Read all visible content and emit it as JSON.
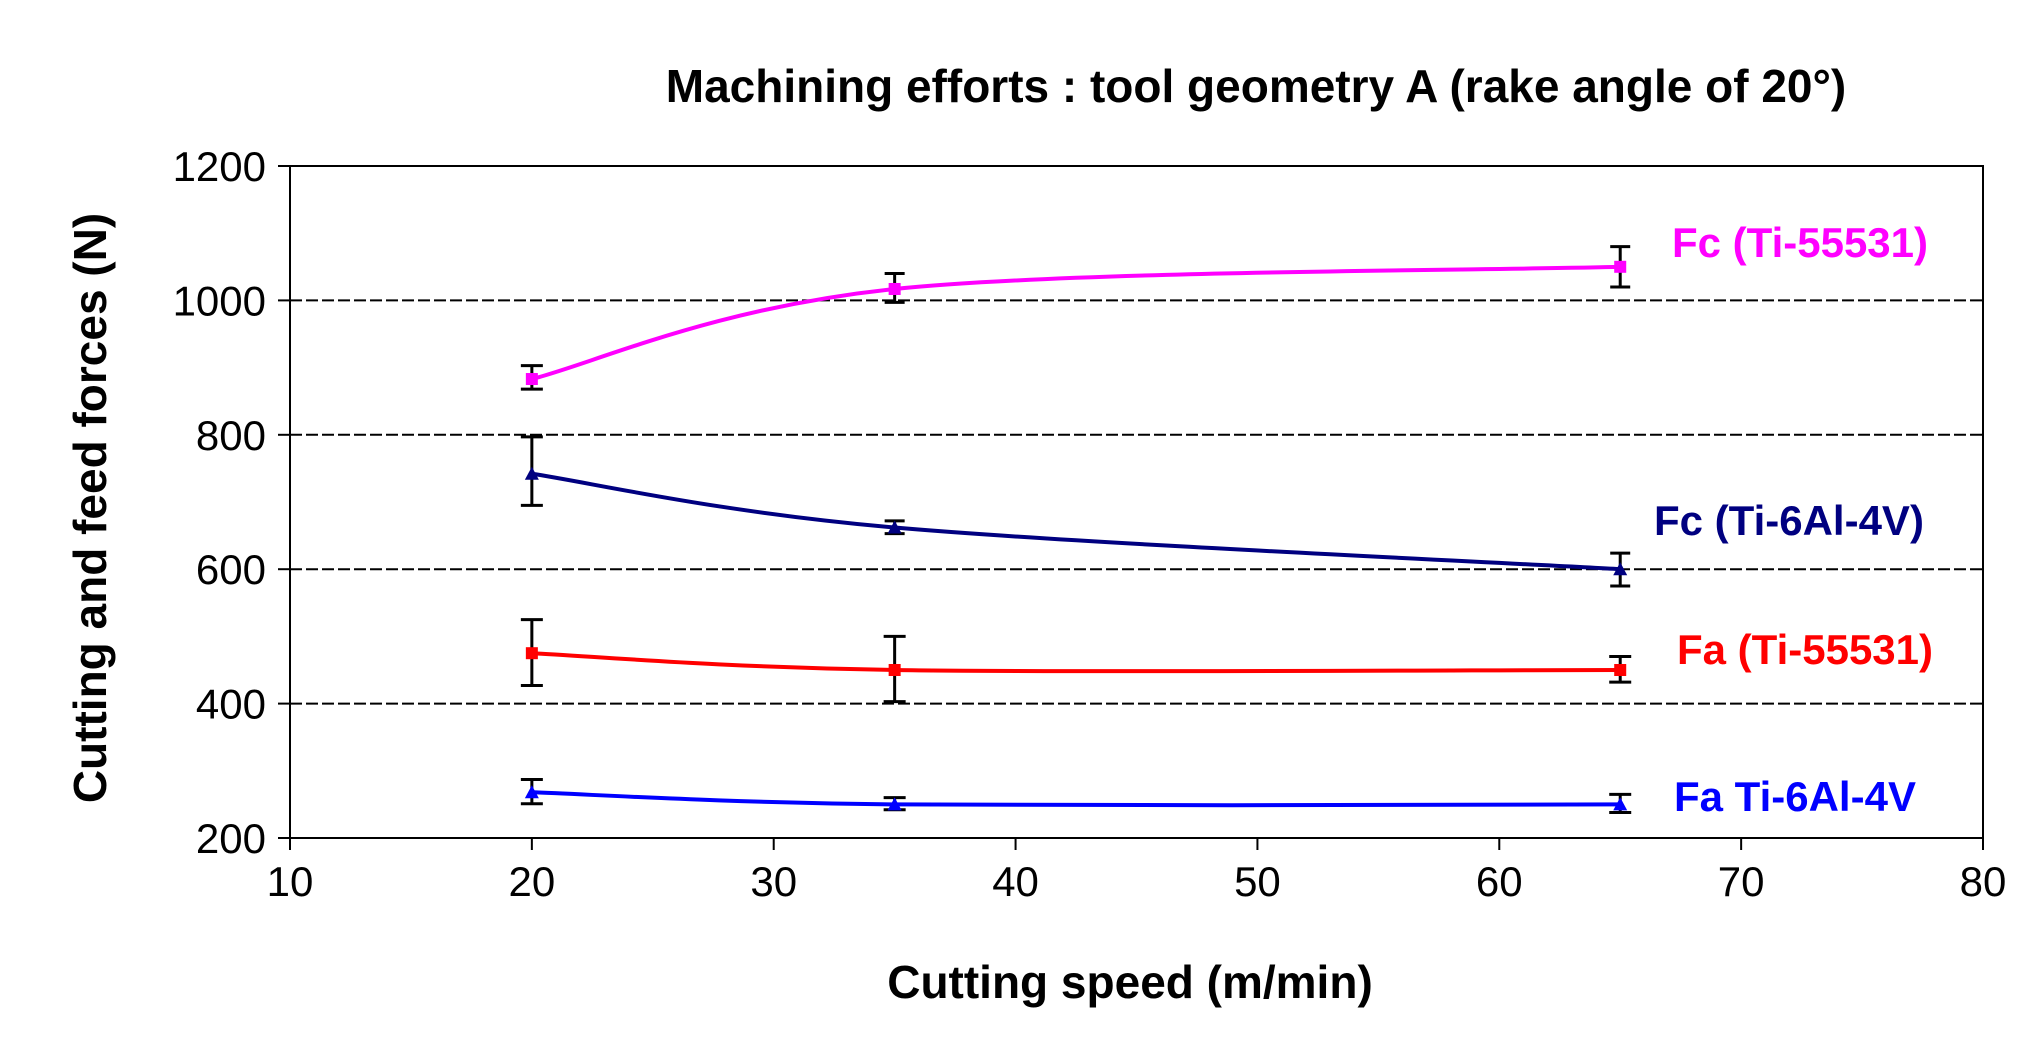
{
  "chart_data": {
    "type": "line",
    "title": "Machining efforts : tool geometry A (rake angle of 20°)",
    "xlabel": "Cutting speed (m/min)",
    "ylabel": "Cutting and feed forces (N)",
    "xlim": [
      10,
      80
    ],
    "ylim": [
      200,
      1200
    ],
    "xticks": [
      10,
      20,
      30,
      40,
      50,
      60,
      70,
      80
    ],
    "yticks": [
      200,
      400,
      600,
      800,
      1000,
      1200
    ],
    "grid": "horizontal dashed",
    "x": [
      20,
      35,
      65
    ],
    "series": [
      {
        "name": "Fc (Ti-55531)",
        "color": "#ff00ff",
        "marker": "square",
        "values": [
          883,
          1017,
          1050
        ],
        "error_low": [
          868,
          997,
          1020
        ],
        "error_high": [
          903,
          1040,
          1080
        ]
      },
      {
        "name": "Fc (Ti-6Al-4V)",
        "color": "#000080",
        "marker": "triangle",
        "values": [
          742,
          662,
          600
        ],
        "error_low": [
          695,
          653,
          575
        ],
        "error_high": [
          797,
          672,
          624
        ]
      },
      {
        "name": "Fa (Ti-55531)",
        "color": "#ff0000",
        "marker": "square",
        "values": [
          475,
          450,
          450
        ],
        "error_low": [
          427,
          403,
          432
        ],
        "error_high": [
          525,
          500,
          470
        ]
      },
      {
        "name": "Fa Ti-6Al-4V",
        "color": "#0000ff",
        "marker": "triangle",
        "values": [
          268,
          250,
          250
        ],
        "error_low": [
          251,
          242,
          238
        ],
        "error_high": [
          287,
          260,
          265
        ]
      }
    ]
  }
}
